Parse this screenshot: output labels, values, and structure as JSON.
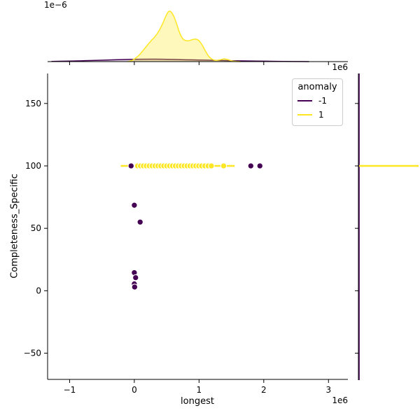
{
  "figure": {
    "background": "#ffffff"
  },
  "chart_data": {
    "type": "scatter",
    "title": "",
    "xlabel": "longest",
    "ylabel": "Completeness_Specific",
    "x_unit_offset_label": "1e6",
    "x_unit_note": "x values below are in units of 1e6",
    "xlim": [
      -1.34,
      3.3
    ],
    "ylim": [
      -71,
      174
    ],
    "x_ticks": [
      -1,
      0,
      1,
      2,
      3
    ],
    "x_tick_labels": [
      "−1",
      "0",
      "1",
      "2",
      "3"
    ],
    "y_ticks": [
      150,
      100,
      50,
      0,
      -50
    ],
    "y_tick_labels": [
      "150",
      "100",
      "50",
      "0",
      "−50"
    ],
    "grid": false,
    "legend": {
      "title": "anomaly",
      "position": "upper right",
      "entries": [
        {
          "label": "-1",
          "color": "#440154"
        },
        {
          "label": "1",
          "color": "#fde725"
        }
      ]
    },
    "series": [
      {
        "name": "-1",
        "color": "#440154",
        "points": [
          [
            -0.05,
            100
          ],
          [
            1.8,
            100
          ],
          [
            1.94,
            100
          ],
          [
            0,
            68.5
          ],
          [
            0.09,
            55
          ],
          [
            0,
            14.5
          ],
          [
            0.02,
            10.5
          ],
          [
            0,
            5.5
          ],
          [
            0.005,
            3
          ]
        ]
      },
      {
        "name": "1",
        "color": "#fde725",
        "line": {
          "y": 100,
          "x_from": -0.21,
          "x_to": 1.55
        },
        "points_y": 100,
        "points_x": [
          0.05,
          0.095,
          0.14,
          0.185,
          0.23,
          0.275,
          0.32,
          0.365,
          0.41,
          0.455,
          0.5,
          0.545,
          0.59,
          0.635,
          0.68,
          0.725,
          0.77,
          0.815,
          0.86,
          0.905,
          0.95,
          0.995,
          1.04,
          1.09,
          1.14,
          1.19,
          1.38
        ]
      }
    ],
    "top_marginal": {
      "type": "kde",
      "offset_label": "1e−6",
      "ylim": [
        0,
        1.55
      ],
      "series": [
        {
          "name": "-1",
          "color": "#440154",
          "fill": "rgba(68,1,84,0.18)",
          "x": [
            -1.28,
            -1.1,
            -0.9,
            -0.7,
            -0.5,
            -0.3,
            -0.1,
            0.1,
            0.3,
            0.5,
            0.7,
            0.9,
            1.1,
            1.3,
            1.5,
            1.7,
            1.9,
            2.1,
            2.3,
            2.5,
            2.7
          ],
          "density": [
            0.004,
            0.012,
            0.02,
            0.03,
            0.04,
            0.052,
            0.062,
            0.068,
            0.07,
            0.066,
            0.058,
            0.05,
            0.042,
            0.034,
            0.027,
            0.02,
            0.015,
            0.01,
            0.006,
            0.003,
            0
          ]
        },
        {
          "name": "1",
          "color": "#fde725",
          "fill": "rgba(253,231,37,0.3)",
          "x": [
            -0.1,
            -0.04,
            0.02,
            0.08,
            0.14,
            0.2,
            0.26,
            0.32,
            0.38,
            0.44,
            0.48,
            0.52,
            0.55,
            0.58,
            0.62,
            0.66,
            0.7,
            0.74,
            0.78,
            0.84,
            0.9,
            0.95,
            1.0,
            1.05,
            1.1,
            1.15,
            1.2,
            1.26,
            1.32,
            1.38,
            1.44,
            1.5,
            1.58,
            1.64
          ],
          "density": [
            0,
            0.03,
            0.1,
            0.2,
            0.33,
            0.47,
            0.6,
            0.72,
            0.88,
            1.1,
            1.28,
            1.42,
            1.45,
            1.4,
            1.26,
            1.05,
            0.83,
            0.68,
            0.615,
            0.6,
            0.635,
            0.645,
            0.6,
            0.47,
            0.3,
            0.15,
            0.07,
            0.035,
            0.05,
            0.075,
            0.06,
            0.025,
            0.005,
            0
          ]
        }
      ]
    },
    "right_marginal": {
      "type": "kde",
      "series": [
        {
          "name": "-1",
          "color": "#440154",
          "shape": "near-zero-flat"
        },
        {
          "name": "1",
          "color": "#fde725",
          "spike_y": 100
        }
      ]
    }
  }
}
